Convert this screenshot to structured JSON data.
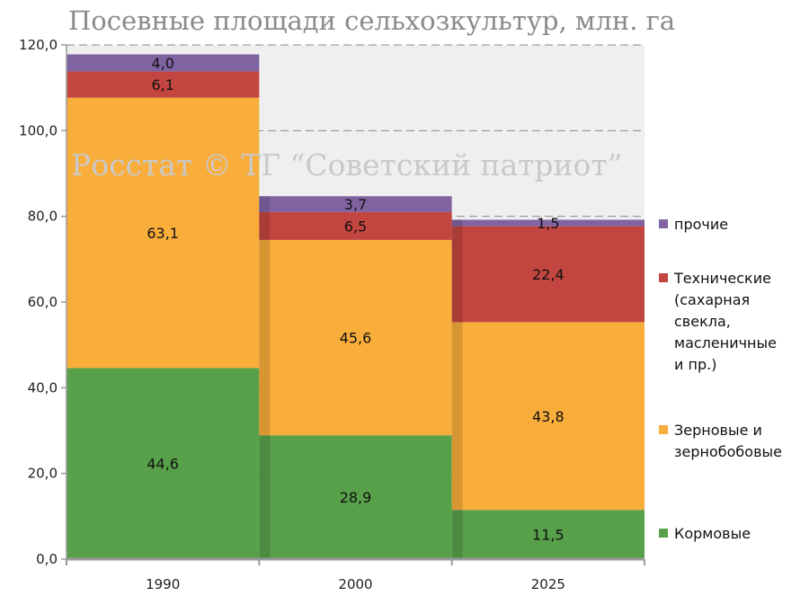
{
  "chart_data": {
    "type": "bar",
    "stacked": true,
    "title": "Посевные площади сельхозкультур, млн. га",
    "categories": [
      "1990",
      "2000",
      "2025"
    ],
    "series": [
      {
        "name": "Кормовые",
        "color": "#58a04a",
        "values": [
          44.6,
          28.9,
          11.5
        ],
        "labels": [
          "44,6",
          "28,9",
          "11,5"
        ]
      },
      {
        "name": "Зерновые и зернобобовые",
        "color": "#f9ad3b",
        "values": [
          63.1,
          45.6,
          43.8
        ],
        "labels": [
          "63,1",
          "45,6",
          "43,8"
        ]
      },
      {
        "name": "Технические (сахарная свекла, масленичные и пр.)",
        "color": "#c3453f",
        "values": [
          6.1,
          6.5,
          22.4
        ],
        "labels": [
          "6,1",
          "6,5",
          "22,4"
        ]
      },
      {
        "name": "прочие",
        "color": "#8064a2",
        "values": [
          4.0,
          3.7,
          1.5
        ],
        "labels": [
          "4,0",
          "3,7",
          "1,5"
        ]
      }
    ],
    "y_ticks": [
      "0,0",
      "20,0",
      "40,0",
      "60,0",
      "80,0",
      "100,0",
      "120,0"
    ],
    "ylim": [
      0,
      120
    ],
    "grid": true,
    "legend_position": "right",
    "legend_lines": {
      "Кормовые": [
        "Кормовые"
      ],
      "Зерновые и зернобобовые": [
        "Зерновые и",
        "зернобобовые"
      ],
      "Технические (сахарная свекла, масленичные и пр.)": [
        "Технические",
        "(сахарная",
        "свекла,",
        "масленичные",
        "и пр.)"
      ],
      "прочие": [
        "прочие"
      ]
    },
    "watermark": "Росстат © ТГ “Советский патриот”"
  }
}
